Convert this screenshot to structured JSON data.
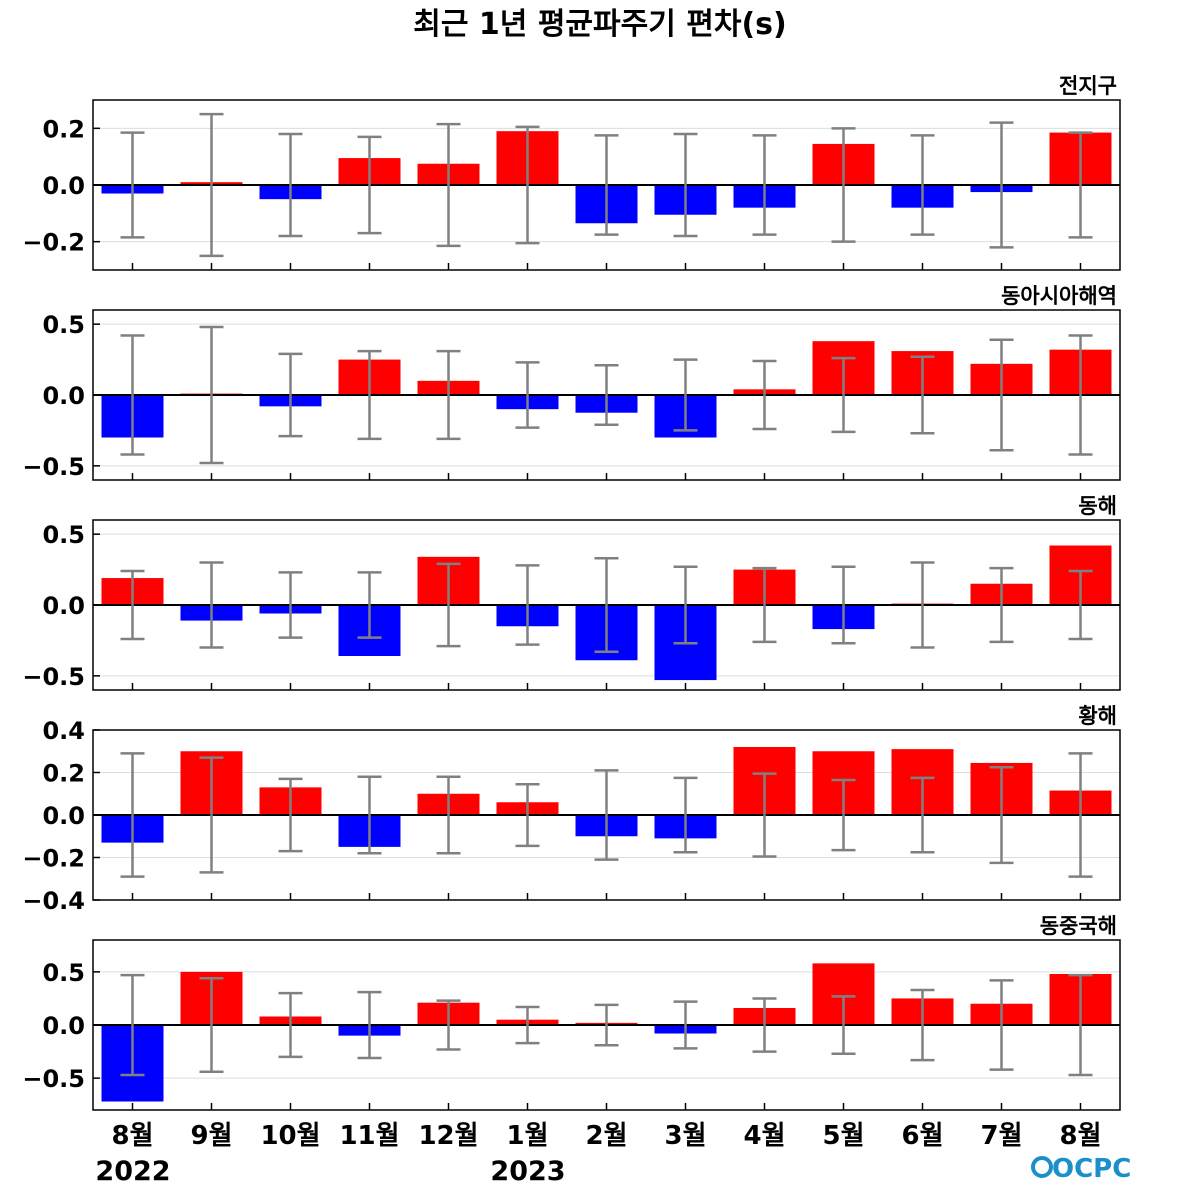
{
  "chart_data": {
    "type": "bar",
    "title": "최근 1년 평균파주기 편차(s)",
    "categories": [
      "8월",
      "9월",
      "10월",
      "11월",
      "12월",
      "1월",
      "2월",
      "3월",
      "4월",
      "5월",
      "6월",
      "7월",
      "8월"
    ],
    "year_labels": [
      "2022",
      "2023"
    ],
    "colors": {
      "positive": "#ff0000",
      "negative": "#0000ff",
      "error_bar": "#808080",
      "zero_line": "#000000",
      "grid": "#dddddd"
    },
    "grid": true,
    "logo": "OCPC",
    "panels": [
      {
        "region": "전지구",
        "ylim": [
          -0.3,
          0.3
        ],
        "yticks": [
          -0.2,
          0.0,
          0.2
        ],
        "ytick_labels": [
          "−0.2",
          "0.0",
          "0.2"
        ],
        "values": [
          -0.03,
          0.01,
          -0.05,
          0.095,
          0.075,
          0.19,
          -0.135,
          -0.105,
          -0.08,
          0.145,
          -0.08,
          -0.025,
          0.185
        ],
        "error": [
          0.185,
          0.25,
          0.18,
          0.17,
          0.215,
          0.205,
          0.175,
          0.18,
          0.175,
          0.2,
          0.175,
          0.22,
          0.185
        ]
      },
      {
        "region": "동아시아해역",
        "ylim": [
          -0.6,
          0.6
        ],
        "yticks": [
          -0.5,
          0.0,
          0.5
        ],
        "ytick_labels": [
          "−0.5",
          "0.0",
          "0.5"
        ],
        "values": [
          -0.3,
          0.01,
          -0.08,
          0.25,
          0.1,
          -0.1,
          -0.125,
          -0.3,
          0.04,
          0.38,
          0.31,
          0.22,
          0.32
        ],
        "error": [
          0.42,
          0.48,
          0.29,
          0.31,
          0.31,
          0.23,
          0.21,
          0.25,
          0.24,
          0.26,
          0.27,
          0.39,
          0.42
        ]
      },
      {
        "region": "동해",
        "ylim": [
          -0.6,
          0.6
        ],
        "yticks": [
          -0.5,
          0.0,
          0.5
        ],
        "ytick_labels": [
          "−0.5",
          "0.0",
          "0.5"
        ],
        "values": [
          0.19,
          -0.11,
          -0.06,
          -0.36,
          0.34,
          -0.15,
          -0.39,
          -0.53,
          0.25,
          -0.17,
          0.01,
          0.15,
          0.42
        ],
        "error": [
          0.24,
          0.3,
          0.23,
          0.23,
          0.29,
          0.28,
          0.33,
          0.27,
          0.26,
          0.27,
          0.3,
          0.26,
          0.24
        ]
      },
      {
        "region": "황해",
        "ylim": [
          -0.4,
          0.4
        ],
        "yticks": [
          -0.4,
          -0.2,
          0.0,
          0.2,
          0.4
        ],
        "ytick_labels": [
          "−0.4",
          "−0.2",
          "0.0",
          "0.2",
          "0.4"
        ],
        "values": [
          -0.13,
          0.3,
          0.13,
          -0.15,
          0.1,
          0.06,
          -0.1,
          -0.11,
          0.32,
          0.3,
          0.31,
          0.245,
          0.115
        ],
        "error": [
          0.29,
          0.27,
          0.17,
          0.18,
          0.18,
          0.145,
          0.21,
          0.175,
          0.195,
          0.165,
          0.175,
          0.225,
          0.29
        ]
      },
      {
        "region": "동중국해",
        "ylim": [
          -0.8,
          0.8
        ],
        "yticks": [
          -0.5,
          0.0,
          0.5
        ],
        "ytick_labels": [
          "−0.5",
          "0.0",
          "0.5"
        ],
        "values": [
          -0.72,
          0.5,
          0.08,
          -0.1,
          0.21,
          0.05,
          0.02,
          -0.08,
          0.16,
          0.58,
          0.25,
          0.2,
          0.48
        ],
        "error": [
          0.47,
          0.44,
          0.3,
          0.31,
          0.23,
          0.17,
          0.19,
          0.22,
          0.25,
          0.27,
          0.33,
          0.42,
          0.47
        ]
      }
    ]
  }
}
